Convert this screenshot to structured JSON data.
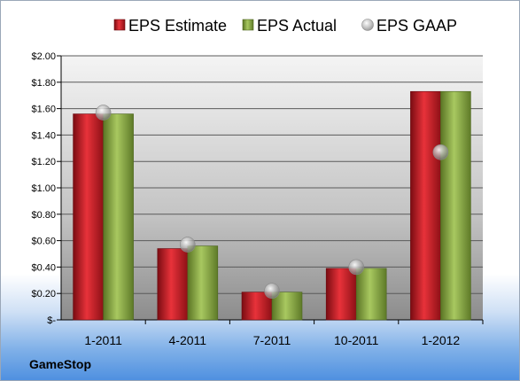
{
  "company": "GameStop",
  "chart_data": {
    "type": "bar",
    "categories": [
      "1-2011",
      "4-2011",
      "7-2011",
      "10-2011",
      "1-2012"
    ],
    "series": [
      {
        "name": "EPS Estimate",
        "type": "bar",
        "color": "#c0202a",
        "values": [
          1.56,
          0.54,
          0.21,
          0.39,
          1.73
        ]
      },
      {
        "name": "EPS Actual",
        "type": "bar",
        "color": "#86a83c",
        "values": [
          1.56,
          0.56,
          0.21,
          0.39,
          1.73
        ]
      },
      {
        "name": "EPS GAAP",
        "type": "scatter",
        "color": "#b8b8b8",
        "values": [
          1.57,
          0.57,
          0.22,
          0.4,
          1.27
        ]
      }
    ],
    "y_ticks": [
      "$-",
      "$0.20",
      "$0.40",
      "$0.60",
      "$0.80",
      "$1.00",
      "$1.20",
      "$1.40",
      "$1.60",
      "$1.80",
      "$2.00"
    ],
    "ylim": [
      0,
      2.0
    ],
    "grid": true,
    "legend_position": "top"
  }
}
